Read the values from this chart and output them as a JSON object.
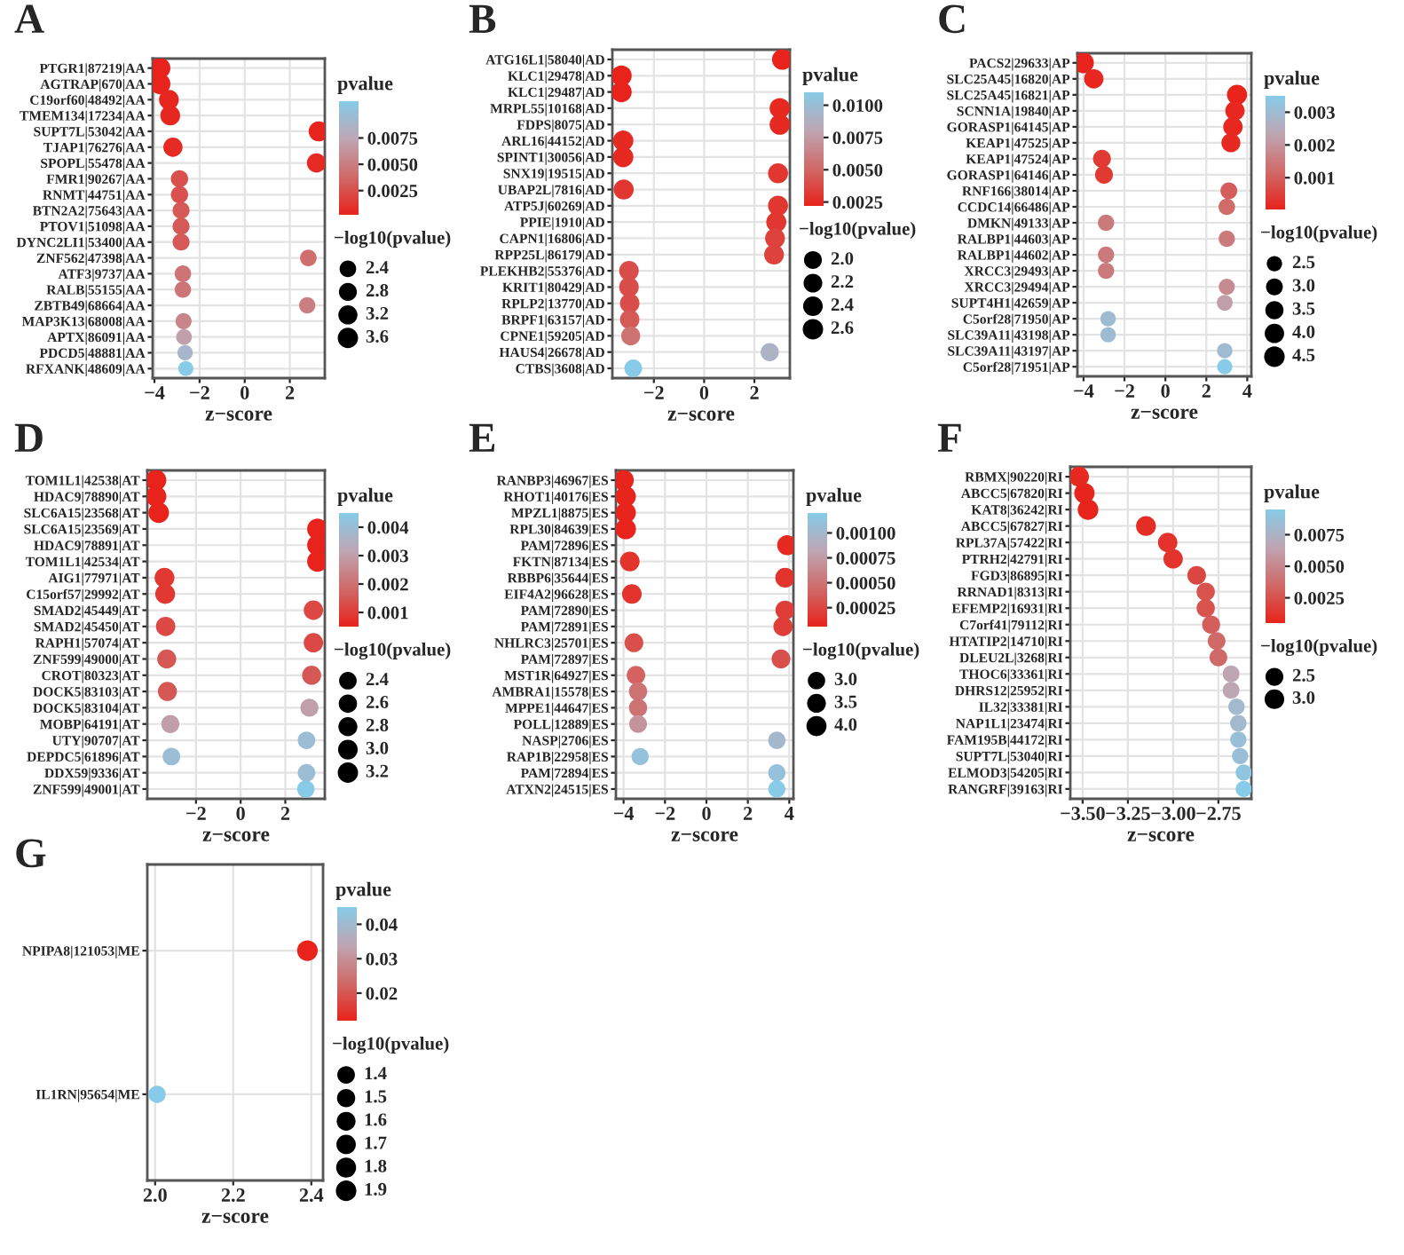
{
  "chart_data": [
    {
      "type": "bubble",
      "title": "A",
      "orientation": "horizontal",
      "xlabel": "z−score",
      "clabel": "pvalue",
      "legend_title": "−log10(pvalue)",
      "grid": true,
      "categories": [
        "PTGR1|87219|AA",
        "AGTRAP|670|AA",
        "C19orf60|48492|AA",
        "TMEM134|17234|AA",
        "SUPT7L|53042|AA",
        "TJAP1|76276|AA",
        "SPOPL|55478|AA",
        "FMR1|90267|AA",
        "RNMT|44751|AA",
        "BTN2A2|75643|AA",
        "PTOV1|51098|AA",
        "DYNC2LI1|53400|AA",
        "ZNF562|47398|AA",
        "ATF3|9737|AA",
        "RALB|55155|AA",
        "ZBTB49|68664|AA",
        "MAP3K13|68008|AA",
        "APTX|86091|AA",
        "PDCD5|48881|AA",
        "RFXANK|48609|AA"
      ],
      "values": [
        -3.75,
        -3.75,
        -3.36,
        -3.3,
        3.28,
        -3.18,
        3.18,
        -2.89,
        -2.89,
        -2.82,
        -2.82,
        -2.82,
        2.82,
        -2.74,
        -2.74,
        2.77,
        -2.71,
        -2.69,
        -2.64,
        -2.61
      ],
      "cvalues": [
        0.0002,
        0.0002,
        0.0004,
        0.0004,
        0.0003,
        0.0006,
        0.0006,
        0.0025,
        0.0025,
        0.003,
        0.003,
        0.003,
        0.004,
        0.0045,
        0.0045,
        0.005,
        0.0055,
        0.007,
        0.009,
        0.011
      ],
      "sizes": [
        3.7,
        3.7,
        3.4,
        3.4,
        3.52,
        3.22,
        3.22,
        2.6,
        2.6,
        2.52,
        2.52,
        2.52,
        2.4,
        2.35,
        2.35,
        2.3,
        2.26,
        2.15,
        2.05,
        1.96
      ],
      "xlim": [
        -4.08,
        3.55
      ],
      "xticks": [
        {
          "value": -4,
          "label": "−4"
        },
        {
          "value": -2,
          "label": "−2"
        },
        0,
        2
      ],
      "clim": [
        0.0002,
        0.011
      ],
      "cticks": [
        0.0025,
        {
          "value": 0.005,
          "label": "0.0050"
        },
        0.0075
      ],
      "size_legend": [
        2.4,
        2.8,
        3.2,
        3.6
      ]
    },
    {
      "type": "bubble",
      "title": "B",
      "orientation": "horizontal",
      "xlabel": "z−score",
      "clabel": "pvalue",
      "legend_title": "−log10(pvalue)",
      "grid": true,
      "categories": [
        "ATG16L1|58040|AD",
        "KLC1|29478|AD",
        "KLC1|29487|AD",
        "MRPL55|10168|AD",
        "FDPS|8075|AD",
        "ARL16|44152|AD",
        "SPINT1|30056|AD",
        "SNX19|19515|AD",
        "UBAP2L|7816|AD",
        "ATP5J|60269|AD",
        "PPIE|1910|AD",
        "CAPN1|16806|AD",
        "RPP25L|86179|AD",
        "PLEKHB2|55376|AD",
        "KRIT1|80429|AD",
        "RPLP2|13770|AD",
        "BRPF1|63157|AD",
        "CPNE1|59205|AD",
        "HAUS4|26678|AD",
        "CTBS|3608|AD"
      ],
      "values": [
        3.11,
        -3.29,
        -3.29,
        3.01,
        3.01,
        -3.22,
        -3.22,
        2.94,
        -3.2,
        2.94,
        2.87,
        2.82,
        2.78,
        -2.99,
        -2.99,
        -2.96,
        -2.96,
        -2.92,
        2.61,
        -2.82
      ],
      "cvalues": [
        0.0022,
        0.0022,
        0.0022,
        0.0025,
        0.0025,
        0.0025,
        0.0025,
        0.003,
        0.003,
        0.003,
        0.003,
        0.0035,
        0.0035,
        0.004,
        0.004,
        0.004,
        0.0045,
        0.0055,
        0.009,
        0.011
      ],
      "sizes": [
        2.66,
        2.66,
        2.66,
        2.6,
        2.6,
        2.6,
        2.6,
        2.52,
        2.52,
        2.52,
        2.52,
        2.46,
        2.46,
        2.4,
        2.4,
        2.4,
        2.35,
        2.26,
        2.05,
        1.96
      ],
      "xlim": [
        -3.65,
        3.41
      ],
      "xticks": [
        {
          "value": -2,
          "label": "−2"
        },
        0,
        2
      ],
      "clim": [
        0.0022,
        0.011
      ],
      "cticks": [
        0.0025,
        {
          "value": 0.005,
          "label": "0.0050"
        },
        0.0075,
        {
          "value": 0.01,
          "label": "0.0100"
        }
      ],
      "size_legend": [
        {
          "value": 2.0,
          "label": "2.0"
        },
        2.2,
        2.4,
        2.6
      ]
    },
    {
      "type": "bubble",
      "title": "C",
      "orientation": "horizontal",
      "xlabel": "z−score",
      "clabel": "pvalue",
      "legend_title": "−log10(pvalue)",
      "grid": true,
      "categories": [
        "PACS2|29633|AP",
        "SLC25A45|16820|AP",
        "SLC25A45|16821|AP",
        "SCNN1A|19840|AP",
        "GORASP1|64145|AP",
        "KEAP1|47525|AP",
        "KEAP1|47524|AP",
        "GORASP1|64146|AP",
        "RNF166|38014|AP",
        "CCDC14|66486|AP",
        "DMKN|49133|AP",
        "RALBP1|44603|AP",
        "RALBP1|44602|AP",
        "XRCC3|29493|AP",
        "XRCC3|29494|AP",
        "SUPT4H1|42659|AP",
        "C5orf28|71950|AP",
        "SLC39A11|43198|AP",
        "SLC39A11|43197|AP",
        "C5orf28|71951|AP"
      ],
      "values": [
        -4.0,
        -3.5,
        3.5,
        3.4,
        3.3,
        3.2,
        -3.1,
        -3.0,
        3.1,
        3.0,
        -2.9,
        3.0,
        -2.9,
        -2.9,
        3.0,
        2.9,
        -2.8,
        -2.8,
        2.9,
        2.9
      ],
      "cvalues": [
        3e-05,
        0.0001,
        5e-05,
        0.0001,
        0.0001,
        0.00015,
        0.0004,
        0.0004,
        0.001,
        0.0012,
        0.0015,
        0.0015,
        0.0015,
        0.0015,
        0.0018,
        0.0022,
        0.003,
        0.003,
        0.003,
        0.0035
      ],
      "sizes": [
        4.52,
        4.0,
        4.3,
        4.0,
        4.0,
        3.82,
        3.4,
        3.4,
        3.0,
        2.92,
        2.82,
        2.82,
        2.82,
        2.82,
        2.74,
        2.66,
        2.52,
        2.52,
        2.52,
        2.46
      ],
      "xlim": [
        -4.3,
        4.2
      ],
      "xticks": [
        {
          "value": -4,
          "label": "−4"
        },
        {
          "value": -2,
          "label": "−2"
        },
        0,
        2,
        4
      ],
      "clim": [
        3e-05,
        0.0035
      ],
      "cticks": [
        0.001,
        0.002,
        0.003
      ],
      "size_legend": [
        2.5,
        {
          "value": 3.0,
          "label": "3.0"
        },
        3.5,
        {
          "value": 4.0,
          "label": "4.0"
        },
        4.5
      ]
    },
    {
      "type": "bubble",
      "title": "D",
      "orientation": "horizontal",
      "xlabel": "z−score",
      "clabel": "pvalue",
      "legend_title": "−log10(pvalue)",
      "grid": true,
      "categories": [
        "TOM1L1|42538|AT",
        "HDAC9|78890|AT",
        "SLC6A15|23568|AT",
        "SLC6A15|23569|AT",
        "HDAC9|78891|AT",
        "TOM1L1|42534|AT",
        "AIG1|77971|AT",
        "C15orf57|29992|AT",
        "SMAD2|45449|AT",
        "SMAD2|45450|AT",
        "RAPH1|57074|AT",
        "ZNF599|49000|AT",
        "CROT|80323|AT",
        "DOCK5|83103|AT",
        "DOCK5|83104|AT",
        "MOBP|64191|AT",
        "UTY|90707|AT",
        "DEPDC5|61896|AT",
        "DDX59|9336|AT",
        "ZNF599|49001|AT"
      ],
      "values": [
        -3.79,
        -3.79,
        -3.67,
        3.44,
        3.44,
        3.44,
        -3.41,
        -3.38,
        3.26,
        -3.36,
        3.26,
        -3.31,
        3.18,
        -3.28,
        3.08,
        -3.15,
        2.95,
        -3.1,
        2.95,
        2.92
      ],
      "cvalues": [
        0.0005,
        0.0005,
        0.0005,
        0.0005,
        0.0005,
        0.0005,
        0.0009,
        0.0009,
        0.0012,
        0.0012,
        0.0012,
        0.0015,
        0.0015,
        0.0015,
        0.003,
        0.003,
        0.004,
        0.004,
        0.004,
        0.0045
      ],
      "sizes": [
        3.3,
        3.3,
        3.3,
        3.3,
        3.3,
        3.3,
        3.05,
        3.05,
        2.92,
        2.92,
        2.92,
        2.82,
        2.82,
        2.82,
        2.52,
        2.52,
        2.4,
        2.4,
        2.4,
        2.35
      ],
      "xlim": [
        -4.18,
        3.77
      ],
      "xticks": [
        {
          "value": -2,
          "label": "−2"
        },
        0,
        2
      ],
      "clim": [
        0.0005,
        0.0045
      ],
      "cticks": [
        0.001,
        0.002,
        0.003,
        0.004
      ],
      "size_legend": [
        2.4,
        2.6,
        2.8,
        {
          "value": 3.0,
          "label": "3.0"
        },
        3.2
      ]
    },
    {
      "type": "bubble",
      "title": "E",
      "orientation": "horizontal",
      "xlabel": "z−score",
      "clabel": "pvalue",
      "legend_title": "−log10(pvalue)",
      "grid": true,
      "categories": [
        "RANBP3|46967|ES",
        "RHOT1|40176|ES",
        "MPZL1|8875|ES",
        "RPL30|84639|ES",
        "PAM|72896|ES",
        "FKTN|87134|ES",
        "RBBP6|35644|ES",
        "EIF4A2|96628|ES",
        "PAM|72890|ES",
        "PAM|72891|ES",
        "NHLRC3|25701|ES",
        "PAM|72897|ES",
        "MST1R|64927|ES",
        "AMBRA1|15578|ES",
        "MPPE1|44647|ES",
        "POLL|12889|ES",
        "NASP|2706|ES",
        "RAP1B|22958|ES",
        "PAM|72894|ES",
        "ATXN2|24515|ES"
      ],
      "values": [
        -4.0,
        -3.9,
        -3.9,
        -3.9,
        3.9,
        -3.7,
        3.8,
        -3.6,
        3.8,
        3.7,
        -3.5,
        3.6,
        -3.4,
        -3.3,
        -3.3,
        -3.3,
        3.4,
        -3.2,
        3.4,
        3.4
      ],
      "cvalues": [
        7e-05,
        7e-05,
        7e-05,
        6e-05,
        0.0001,
        0.00015,
        0.00015,
        0.00015,
        0.0002,
        0.0002,
        0.0003,
        0.0003,
        0.0004,
        0.0005,
        0.0005,
        0.0007,
        0.001,
        0.0011,
        0.0011,
        0.0012
      ],
      "sizes": [
        4.15,
        4.15,
        4.15,
        4.22,
        4.0,
        3.82,
        3.82,
        3.82,
        3.7,
        3.7,
        3.52,
        3.52,
        3.4,
        3.3,
        3.3,
        3.15,
        3.0,
        2.96,
        2.96,
        2.92
      ],
      "xlim": [
        -4.37,
        4.2
      ],
      "xticks": [
        {
          "value": -4,
          "label": "−4"
        },
        {
          "value": -2,
          "label": "−2"
        },
        0,
        2,
        4
      ],
      "clim": [
        6e-05,
        0.0012
      ],
      "cticks": [
        {
          "value": 0.00025,
          "label": "0.00025"
        },
        {
          "value": 0.0005,
          "label": "0.00050"
        },
        {
          "value": 0.00075,
          "label": "0.00075"
        },
        {
          "value": 0.001,
          "label": "0.00100"
        }
      ],
      "size_legend": [
        {
          "value": 3.0,
          "label": "3.0"
        },
        3.5,
        {
          "value": 4.0,
          "label": "4.0"
        }
      ]
    },
    {
      "type": "bubble",
      "title": "F",
      "orientation": "horizontal",
      "xlabel": "z−score",
      "clabel": "pvalue",
      "legend_title": "−log10(pvalue)",
      "grid": true,
      "categories": [
        "RBMX|90220|RI",
        "ABCC5|67820|RI",
        "KAT8|36242|RI",
        "ABCC5|67827|RI",
        "RPL37A|57422|RI",
        "PTRH2|42791|RI",
        "FGD3|86895|RI",
        "RRNAD1|8313|RI",
        "EFEMP2|16931|RI",
        "C7orf41|79112|RI",
        "HTATIP2|14710|RI",
        "DLEU2L|3268|RI",
        "THOC6|33361|RI",
        "DHRS12|25952|RI",
        "IL32|33381|RI",
        "NAP1L1|23474|RI",
        "FAM195B|44172|RI",
        "SUPT7L|53040|RI",
        "ELMOD3|54205|RI",
        "RANGRF|39163|RI"
      ],
      "values": [
        -3.52,
        -3.49,
        -3.47,
        -3.15,
        -3.03,
        -3.0,
        -2.87,
        -2.82,
        -2.82,
        -2.79,
        -2.76,
        -2.75,
        -2.68,
        -2.68,
        -2.65,
        -2.64,
        -2.64,
        -2.63,
        -2.61,
        -2.61
      ],
      "cvalues": [
        0.0008,
        0.0006,
        0.0005,
        0.0009,
        0.0012,
        0.0012,
        0.002,
        0.0025,
        0.0025,
        0.003,
        0.0035,
        0.0035,
        0.0065,
        0.0065,
        0.008,
        0.008,
        0.0085,
        0.0085,
        0.009,
        0.0095
      ],
      "sizes": [
        3.1,
        3.22,
        3.3,
        3.05,
        2.92,
        2.92,
        2.7,
        2.6,
        2.6,
        2.52,
        2.46,
        2.46,
        2.19,
        2.19,
        2.1,
        2.1,
        2.07,
        2.07,
        2.05,
        2.02
      ],
      "xlim": [
        -3.568,
        -2.568
      ],
      "xticks": [
        {
          "value": -3.5,
          "label": "−3.50"
        },
        {
          "value": -3.25,
          "label": "−3.25"
        },
        {
          "value": -3.0,
          "label": "−3.00"
        },
        {
          "value": -2.75,
          "label": "−2.75"
        }
      ],
      "clim": [
        0.0005,
        0.0095
      ],
      "cticks": [
        0.0025,
        {
          "value": 0.005,
          "label": "0.0050"
        },
        0.0075
      ],
      "size_legend": [
        2.5,
        {
          "value": 3.0,
          "label": "3.0"
        }
      ]
    },
    {
      "type": "bubble",
      "title": "G",
      "orientation": "horizontal",
      "xlabel": "z−score",
      "clabel": "pvalue",
      "legend_title": "−log10(pvalue)",
      "grid": true,
      "categories": [
        "NPIPA8|121053|ME",
        "IL1RN|95654|ME"
      ],
      "values": [
        2.39,
        2.005
      ],
      "cvalues": [
        0.012,
        0.045
      ],
      "sizes": [
        1.92,
        1.35
      ],
      "xlim": [
        1.98,
        2.43
      ],
      "xticks": [
        {
          "value": 2.0,
          "label": "2.0"
        },
        2.2,
        2.4
      ],
      "clim": [
        0.012,
        0.045
      ],
      "cticks": [
        0.02,
        0.03,
        0.04
      ],
      "size_legend": [
        1.4,
        1.5,
        1.6,
        1.7,
        1.8,
        1.9
      ]
    }
  ]
}
